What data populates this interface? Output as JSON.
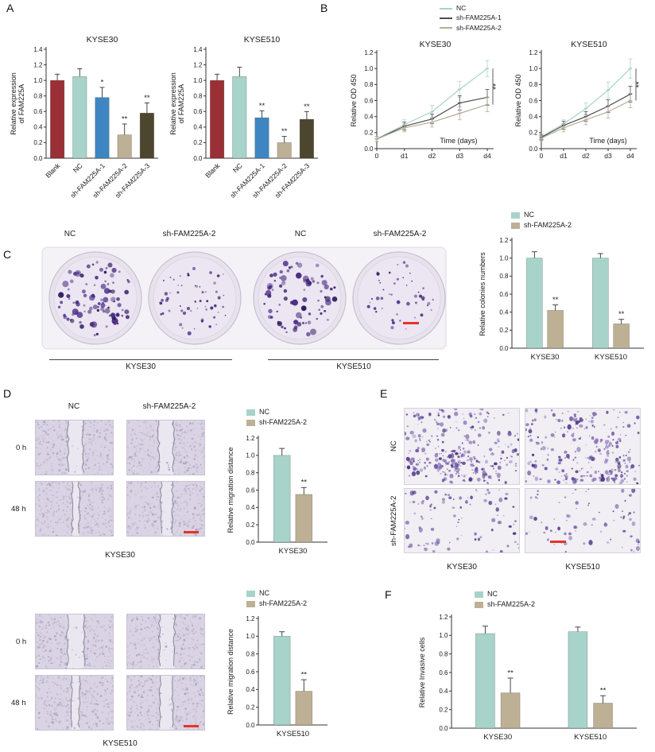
{
  "panels": {
    "a": {
      "label": "A"
    },
    "b": {
      "label": "B"
    },
    "c": {
      "label": "C"
    },
    "d": {
      "label": "D"
    },
    "e": {
      "label": "E"
    },
    "f": {
      "label": "F"
    }
  },
  "colors": {
    "blank": "#9a2f35",
    "nc_fill": "#a7d3ca",
    "sh1_fill": "#3e86c2",
    "sh2_fill": "#bdb094",
    "sh3_fill": "#4c462f",
    "line_nc": "#a7d3ca",
    "line_sh1": "#4d4d4d",
    "line_sh2": "#b6ad97",
    "axis": "#333333",
    "scalebar": "#e5332a"
  },
  "legend_cck8": {
    "items": [
      {
        "label": "NC",
        "color": "line_nc"
      },
      {
        "label": "sh-FAM225A-1",
        "color": "line_sh1"
      },
      {
        "label": "sh-FAM225A-2",
        "color": "line_sh2"
      }
    ]
  },
  "legend_pair": {
    "items": [
      {
        "label": "NC",
        "color": "nc_fill"
      },
      {
        "label": "sh-FAM225A-2",
        "color": "sh2_fill"
      }
    ]
  },
  "panel_c": {
    "dish_labels": [
      "NC",
      "sh-FAM225A-2",
      "NC",
      "sh-FAM225A-2"
    ],
    "group_labels": [
      "KYSE30",
      "KYSE510"
    ]
  },
  "panel_d": {
    "col_labels": [
      "NC",
      "sh-FAM225A-2"
    ],
    "row_labels": [
      "0 h",
      "48 h"
    ],
    "top_cell_line": "KYSE30",
    "bottom_cell_line": "KYSE510"
  },
  "panel_e": {
    "row_labels": [
      "NC",
      "sh-FAM225A-2"
    ],
    "col_labels": [
      "KYSE30",
      "KYSE510"
    ]
  },
  "chart_data": {
    "a_kyse30": {
      "type": "bar",
      "title": "KYSE30",
      "ylabel": "Relative expression\nof FAM225A",
      "categories": [
        "Blank",
        "NC",
        "sh-FAM225A-1",
        "sh-FAM225A-2",
        "sh-FAM225A-3"
      ],
      "values": [
        1.0,
        1.05,
        0.78,
        0.3,
        0.58
      ],
      "errors": [
        0.08,
        0.1,
        0.13,
        0.14,
        0.13
      ],
      "sig": [
        "",
        "",
        "*",
        "**",
        "**"
      ],
      "bar_colors": [
        "blank",
        "nc_fill",
        "sh1_fill",
        "sh2_fill",
        "sh3_fill"
      ],
      "ylim": [
        0,
        1.4
      ],
      "ytick": 0.2,
      "layout": {
        "ylx": 8
      }
    },
    "a_kyse510": {
      "type": "bar",
      "title": "KYSE510",
      "ylabel": "Relative expression\nof FAM225A",
      "categories": [
        "Blank",
        "NC",
        "sh-FAM225A-1",
        "sh-FAM225A-2",
        "sh-FAM225A-3"
      ],
      "values": [
        1.0,
        1.05,
        0.52,
        0.2,
        0.5
      ],
      "errors": [
        0.08,
        0.12,
        0.09,
        0.08,
        0.1
      ],
      "sig": [
        "",
        "",
        "**",
        "**",
        "**"
      ],
      "bar_colors": [
        "blank",
        "nc_fill",
        "sh1_fill",
        "sh2_fill",
        "sh3_fill"
      ],
      "ylim": [
        0,
        1.4
      ],
      "ytick": 0.2,
      "layout": {
        "ylx": 8
      }
    },
    "b_kyse30": {
      "type": "line",
      "title": "KYSE30",
      "ylabel": "Relative OD 450",
      "xlabel": "Time (days)",
      "x": [
        "0",
        "d1",
        "d2",
        "d3",
        "d4"
      ],
      "series": [
        {
          "name": "NC",
          "color": "line_nc",
          "values": [
            0.12,
            0.3,
            0.46,
            0.74,
            1.0
          ],
          "errors": [
            0.03,
            0.06,
            0.08,
            0.1,
            0.1
          ]
        },
        {
          "name": "sh-FAM225A-1",
          "color": "line_sh1",
          "values": [
            0.12,
            0.28,
            0.37,
            0.57,
            0.64
          ],
          "errors": [
            0.03,
            0.05,
            0.06,
            0.09,
            0.1
          ]
        },
        {
          "name": "sh-FAM225A-2",
          "color": "line_sh2",
          "values": [
            0.12,
            0.26,
            0.33,
            0.44,
            0.55
          ],
          "errors": [
            0.03,
            0.05,
            0.06,
            0.08,
            0.09
          ]
        }
      ],
      "ylim": [
        0,
        1.2
      ],
      "ytick": 0.2,
      "annotation": "**"
    },
    "b_kyse510": {
      "type": "line",
      "title": "KYSE510",
      "ylabel": "Relative OD 450",
      "xlabel": "Time (days)",
      "x": [
        "0",
        "d1",
        "d2",
        "d3",
        "d4"
      ],
      "series": [
        {
          "name": "NC",
          "color": "line_nc",
          "values": [
            0.15,
            0.31,
            0.5,
            0.73,
            1.0
          ],
          "errors": [
            0.03,
            0.05,
            0.07,
            0.1,
            0.12
          ]
        },
        {
          "name": "sh-FAM225A-1",
          "color": "line_sh1",
          "values": [
            0.14,
            0.29,
            0.4,
            0.53,
            0.68
          ],
          "errors": [
            0.03,
            0.05,
            0.06,
            0.08,
            0.1
          ]
        },
        {
          "name": "sh-FAM225A-2",
          "color": "line_sh2",
          "values": [
            0.13,
            0.26,
            0.36,
            0.46,
            0.6
          ],
          "errors": [
            0.03,
            0.05,
            0.06,
            0.08,
            0.09
          ]
        }
      ],
      "ylim": [
        0,
        1.2
      ],
      "ytick": 0.2,
      "annotation": "**"
    },
    "c_colonies": {
      "type": "bar-grouped",
      "ylabel": "Relative colonies numbers",
      "categories": [
        "KYSE30",
        "KYSE510"
      ],
      "series": [
        {
          "name": "NC",
          "color": "nc_fill",
          "values": [
            1.0,
            1.0
          ],
          "errors": [
            0.07,
            0.05
          ],
          "sig": [
            "",
            ""
          ]
        },
        {
          "name": "sh-FAM225A-2",
          "color": "sh2_fill",
          "values": [
            0.42,
            0.27
          ],
          "errors": [
            0.06,
            0.05
          ],
          "sig": [
            "**",
            "**"
          ]
        }
      ],
      "ylim": [
        0,
        1.2
      ],
      "ytick": 0.2,
      "layout": {
        "ylx": 12
      }
    },
    "d_kyse30": {
      "type": "bar-grouped",
      "ylabel": "Relative migration distance",
      "categories": [
        "KYSE30"
      ],
      "series": [
        {
          "name": "NC",
          "color": "nc_fill",
          "values": [
            1.0
          ],
          "errors": [
            0.08
          ],
          "sig": [
            ""
          ]
        },
        {
          "name": "sh-FAM225A-2",
          "color": "sh2_fill",
          "values": [
            0.55
          ],
          "errors": [
            0.08
          ],
          "sig": [
            "**"
          ]
        }
      ],
      "ylim": [
        0,
        1.2
      ],
      "ytick": 0.2,
      "layout": {
        "l": 42,
        "r": 6,
        "ylx": 10
      }
    },
    "d_kyse510": {
      "type": "bar-grouped",
      "ylabel": "Relative migration distance",
      "categories": [
        "KYSE510"
      ],
      "series": [
        {
          "name": "NC",
          "color": "nc_fill",
          "values": [
            1.0
          ],
          "errors": [
            0.05
          ],
          "sig": [
            ""
          ]
        },
        {
          "name": "sh-FAM225A-2",
          "color": "sh2_fill",
          "values": [
            0.38
          ],
          "errors": [
            0.13
          ],
          "sig": [
            "**"
          ]
        }
      ],
      "ylim": [
        0,
        1.2
      ],
      "ytick": 0.2,
      "layout": {
        "l": 42,
        "r": 6,
        "ylx": 10
      }
    },
    "f_invasion": {
      "type": "bar-grouped",
      "ylabel": "Relative Invasive cells",
      "categories": [
        "KYSE30",
        "KYSE510"
      ],
      "series": [
        {
          "name": "NC",
          "color": "nc_fill",
          "values": [
            1.02,
            1.04
          ],
          "errors": [
            0.08,
            0.05
          ],
          "sig": [
            "",
            ""
          ]
        },
        {
          "name": "sh-FAM225A-2",
          "color": "sh2_fill",
          "values": [
            0.38,
            0.27
          ],
          "errors": [
            0.16,
            0.08
          ],
          "sig": [
            "**",
            "**"
          ]
        }
      ],
      "ylim": [
        0,
        1.2
      ],
      "ytick": 0.2,
      "layout": {
        "l": 48,
        "r": 14,
        "ylx": 14
      }
    }
  },
  "images": {
    "colony_tray": {
      "dishes": [
        {
          "seed": 11,
          "colonies": 95,
          "min_r": 1.2,
          "max_r": 4.2
        },
        {
          "seed": 22,
          "colonies": 58,
          "min_r": 0.8,
          "max_r": 2.6
        },
        {
          "seed": 33,
          "colonies": 80,
          "min_r": 1.2,
          "max_r": 4.0
        },
        {
          "seed": 44,
          "colonies": 46,
          "min_r": 0.8,
          "max_r": 2.4
        }
      ]
    },
    "wounds": {
      "d30_nc_0h": {
        "seed": 1,
        "gap": [
          0.42,
          0.61
        ]
      },
      "d30_sh_0h": {
        "seed": 2,
        "gap": [
          0.41,
          0.6
        ]
      },
      "d30_nc_48h": {
        "seed": 3,
        "gap": [
          0.47,
          0.56
        ]
      },
      "d30_sh_48h": {
        "seed": 4,
        "gap": [
          0.44,
          0.585
        ],
        "scalebar": true
      },
      "d510_nc_0h": {
        "seed": 5,
        "gap": [
          0.41,
          0.62
        ]
      },
      "d510_sh_0h": {
        "seed": 6,
        "gap": [
          0.42,
          0.61
        ]
      },
      "d510_nc_48h": {
        "seed": 7,
        "gap": [
          0.465,
          0.565
        ]
      },
      "d510_sh_48h": {
        "seed": 8,
        "gap": [
          0.43,
          0.59
        ],
        "scalebar": true
      }
    },
    "transwells": {
      "e_nc_30": {
        "seed": 101,
        "cells": 330
      },
      "e_nc_510": {
        "seed": 102,
        "cells": 300
      },
      "e_sh_30": {
        "seed": 103,
        "cells": 110
      },
      "e_sh_510": {
        "seed": 104,
        "cells": 95,
        "scalebar": true
      }
    }
  }
}
